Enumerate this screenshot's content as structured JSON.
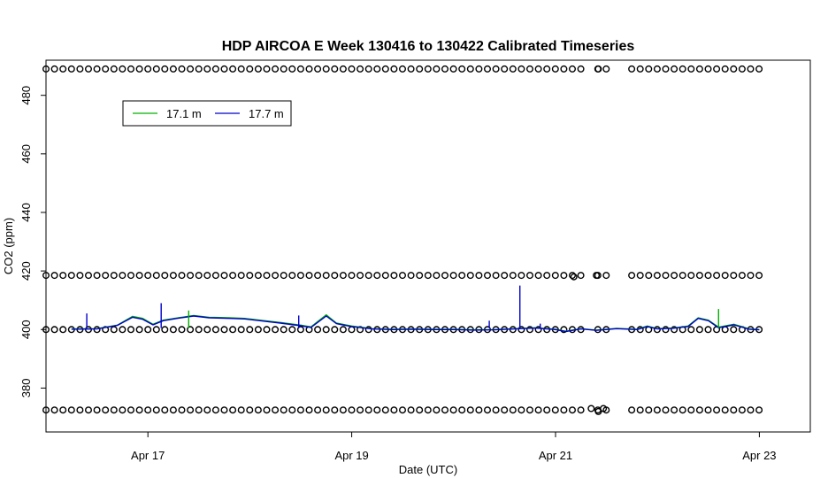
{
  "chart_data": {
    "type": "line",
    "title": "HDP AIRCOA E  Week 130416 to 130422  Calibrated Timeseries",
    "xlabel": "Date (UTC)",
    "ylabel": "CO2 (ppm)",
    "x_ticks": [
      "Apr 17",
      "Apr 19",
      "Apr 21",
      "Apr 23"
    ],
    "y_ticks": [
      380,
      400,
      420,
      440,
      460,
      480
    ],
    "xlim": [
      "Apr 16 00:00",
      "Apr 23 12:00"
    ],
    "ylim": [
      365,
      492
    ],
    "x_range_days": [
      16.0,
      23.5
    ],
    "legend": {
      "position": "top-left",
      "entries": [
        "17.1 m",
        "17.7 m"
      ]
    },
    "colors": {
      "17.1 m": "#00b000",
      "17.7 m": "#0000cc",
      "calibration": "#000000"
    },
    "series": [
      {
        "name": "17.1 m",
        "color": "#00b000",
        "x_day": [
          16.25,
          16.5,
          16.7,
          16.85,
          16.95,
          17.05,
          17.15,
          17.3,
          17.45,
          17.6,
          17.8,
          17.95,
          18.1,
          18.3,
          18.5,
          18.6,
          18.75,
          18.85,
          19.0,
          19.2,
          19.4,
          19.6,
          19.8,
          20.0,
          20.2,
          20.4,
          20.6,
          20.8,
          21.0,
          21.1,
          21.25,
          21.4,
          21.6,
          21.8,
          21.9,
          22.0,
          22.15,
          22.3,
          22.4,
          22.5,
          22.6,
          22.75,
          22.9,
          23.0
        ],
        "y": [
          400.2,
          400.3,
          401.5,
          404.5,
          403.8,
          401.8,
          403.2,
          404.0,
          404.8,
          404.2,
          404.0,
          403.8,
          403.2,
          402.4,
          401.5,
          400.9,
          405.0,
          402.2,
          401.2,
          400.3,
          400.1,
          400.2,
          400.1,
          400.1,
          399.9,
          400.0,
          400.3,
          400.6,
          400.1,
          399.4,
          400.3,
          399.8,
          400.4,
          400.1,
          401.2,
          400.3,
          400.5,
          401.2,
          404.0,
          403.2,
          400.8,
          401.8,
          400.2,
          400.0
        ]
      },
      {
        "name": "17.7 m",
        "color": "#0000cc",
        "x_day": [
          16.25,
          16.5,
          16.7,
          16.85,
          16.95,
          17.05,
          17.15,
          17.3,
          17.45,
          17.6,
          17.8,
          17.95,
          18.1,
          18.3,
          18.5,
          18.6,
          18.75,
          18.85,
          19.0,
          19.2,
          19.4,
          19.6,
          19.8,
          20.0,
          20.2,
          20.4,
          20.6,
          20.8,
          21.0,
          21.1,
          21.25,
          21.4,
          21.6,
          21.8,
          21.9,
          22.0,
          22.15,
          22.3,
          22.4,
          22.5,
          22.6,
          22.75,
          22.9,
          23.0
        ],
        "y": [
          400.1,
          400.2,
          401.4,
          404.2,
          403.5,
          401.6,
          403.0,
          403.9,
          404.6,
          404.0,
          403.8,
          403.6,
          403.0,
          402.2,
          401.3,
          400.7,
          404.6,
          402.0,
          401.0,
          400.2,
          400.0,
          400.1,
          400.0,
          400.0,
          399.8,
          399.9,
          400.2,
          400.5,
          400.0,
          399.3,
          400.2,
          399.7,
          400.3,
          400.0,
          401.0,
          400.2,
          400.4,
          401.0,
          403.8,
          403.0,
          400.6,
          401.6,
          400.1,
          399.9
        ]
      }
    ],
    "spikes": [
      {
        "series": "17.7 m",
        "x_day": 16.4,
        "y": 405.5
      },
      {
        "series": "17.7 m",
        "x_day": 17.13,
        "y": 409.0
      },
      {
        "series": "17.7 m",
        "x_day": 18.48,
        "y": 404.8
      },
      {
        "series": "17.7 m",
        "x_day": 20.35,
        "y": 403.0
      },
      {
        "series": "17.7 m",
        "x_day": 20.65,
        "y": 415.0
      },
      {
        "series": "17.7 m",
        "x_day": 20.85,
        "y": 402.0
      },
      {
        "series": "17.1 m",
        "x_day": 17.4,
        "y": 406.5
      },
      {
        "series": "17.1 m",
        "x_day": 22.6,
        "y": 407.0
      }
    ],
    "calibration_levels": [
      372.5,
      400.0,
      418.5,
      489.0
    ],
    "calibration_points": {
      "start_day": 16.0,
      "end_day": 23.0,
      "step_day": 0.0833,
      "gaps": [
        [
          21.25,
          21.4
        ],
        [
          21.55,
          21.7
        ]
      ],
      "extra_points": [
        {
          "x_day": 21.35,
          "y": 373.0
        },
        {
          "x_day": 21.42,
          "y": 372.0
        },
        {
          "x_day": 21.47,
          "y": 373.0
        },
        {
          "x_day": 21.42,
          "y": 489.0
        },
        {
          "x_day": 21.4,
          "y": 418.5
        },
        {
          "x_day": 21.18,
          "y": 418.0
        }
      ]
    }
  }
}
